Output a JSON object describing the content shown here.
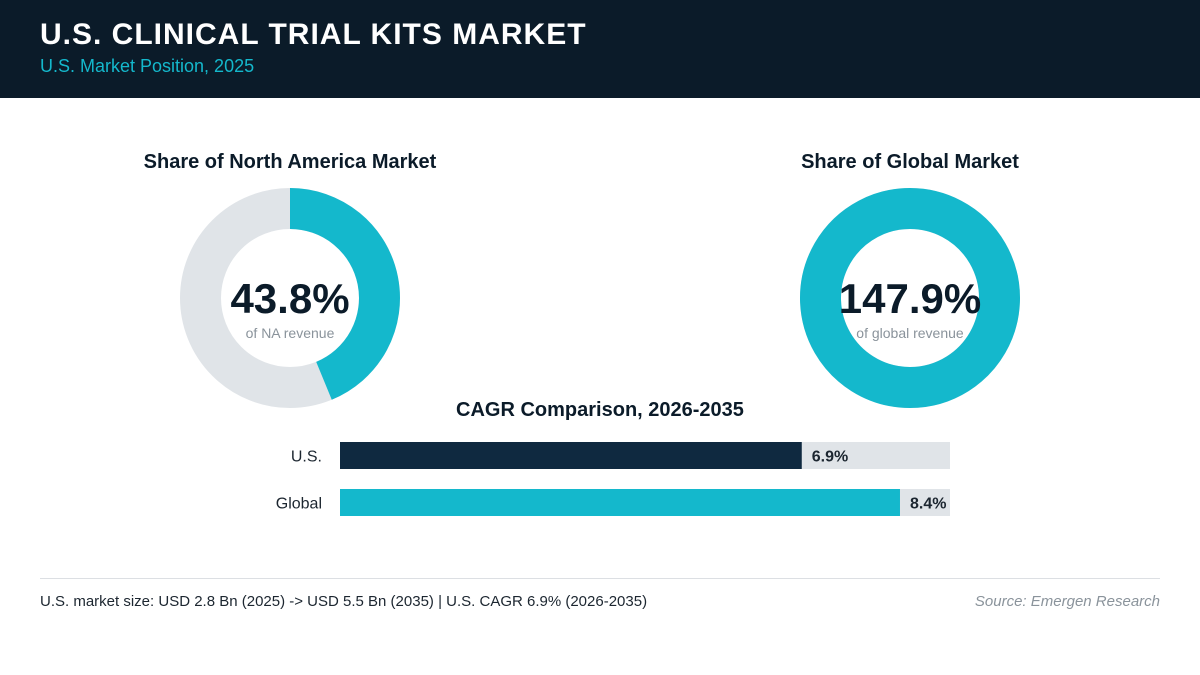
{
  "header": {
    "title": "U.S. CLINICAL TRIAL KITS MARKET",
    "subtitle": "U.S. Market Position, 2025"
  },
  "colors": {
    "header_bg": "#0b1b29",
    "accent": "#14b8cc",
    "dark_bar": "#0f2940",
    "track": "#e0e4e8"
  },
  "chart_data": [
    {
      "type": "pie",
      "title": "Share of North America Market",
      "value": 43.8,
      "value_label": "43.8%",
      "caption": "of NA revenue"
    },
    {
      "type": "pie",
      "title": "Share of Global Market",
      "value": 147.9,
      "value_label": "147.9%",
      "caption": "of global revenue"
    },
    {
      "type": "bar",
      "title": "CAGR Comparison, 2026-2035",
      "categories": [
        "U.S.",
        "Global"
      ],
      "values": [
        6.9,
        8.4
      ],
      "value_labels": [
        "6.9%",
        "8.4%"
      ],
      "xlim": [
        0,
        8.4
      ]
    }
  ],
  "footer": {
    "note": "U.S. market size: USD 2.8 Bn (2025) -> USD 5.5 Bn (2035)  |  U.S. CAGR 6.9% (2026-2035)",
    "source": "Source: Emergen Research"
  }
}
